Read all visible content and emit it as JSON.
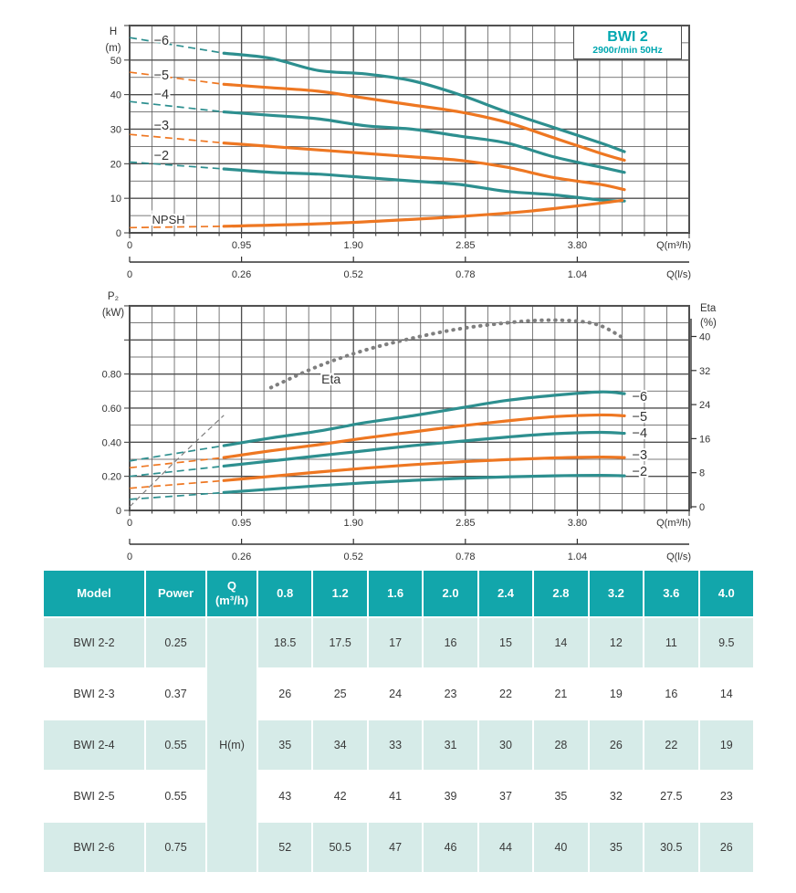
{
  "title": {
    "model": "BWI 2",
    "speed": "2900r/min 50Hz"
  },
  "colors": {
    "teal": "#2d8f8f",
    "orange": "#ee7722",
    "gray": "#7f7f7f",
    "grid": "#4f4f4f",
    "accent": "#00a7b0",
    "table_header_bg": "#12a6ab",
    "table_row_alt_bg": "#d6ebe8",
    "text_dark": "#3a3a3a"
  },
  "chart_data": [
    {
      "type": "line",
      "title": "Head vs flow curves",
      "xlabel": "Q(m³/h)",
      "xlabel2": "Q(l/s)",
      "ylabel": "H\n(m)",
      "xlim": [
        0,
        4.75
      ],
      "ylim": [
        0,
        60
      ],
      "grid": true,
      "x_ticks": [
        "0",
        "0.95",
        "1.90",
        "2.85",
        "3.80"
      ],
      "x2_ticks": [
        "0",
        "0.26",
        "0.52",
        "0.78",
        "1.04"
      ],
      "y_ticks": [
        "0",
        "10",
        "20",
        "30",
        "40",
        "50"
      ],
      "dashed_until": 0.8,
      "x": [
        0,
        0.8,
        1.2,
        1.6,
        2.0,
        2.4,
        2.8,
        3.2,
        3.6,
        4.0,
        4.2
      ],
      "series": [
        {
          "name": "−6",
          "color": "teal",
          "values": [
            56.5,
            52,
            50.5,
            47,
            46,
            44,
            40,
            35,
            30.5,
            26,
            23.5
          ],
          "label": {
            "q": 0.27,
            "v": 55.8
          }
        },
        {
          "name": "−5",
          "color": "orange",
          "values": [
            46.5,
            43,
            42,
            41,
            39,
            37,
            35,
            32,
            27.5,
            23,
            21
          ],
          "label": {
            "q": 0.27,
            "v": 45.7
          }
        },
        {
          "name": "−4",
          "color": "teal",
          "values": [
            38,
            35,
            34,
            33,
            31,
            30,
            28,
            26,
            22,
            19,
            17.5
          ],
          "label": {
            "q": 0.27,
            "v": 40.2
          }
        },
        {
          "name": "−3",
          "color": "orange",
          "values": [
            28.5,
            26,
            25,
            24,
            23,
            22,
            21,
            19,
            16,
            14,
            12.5
          ],
          "label": {
            "q": 0.27,
            "v": 31.2
          }
        },
        {
          "name": "−2",
          "color": "teal",
          "values": [
            20.5,
            18.5,
            17.5,
            17,
            16,
            15,
            14,
            12,
            11,
            9.5,
            9.2
          ],
          "label": {
            "q": 0.27,
            "v": 22.5
          }
        },
        {
          "name": "NPSH",
          "color": "orange",
          "kind": "npsh",
          "x": [
            0,
            0.8,
            1.6,
            2.4,
            3.0,
            3.4,
            3.8,
            4.05,
            4.18
          ],
          "values": [
            1.5,
            1.9,
            2.6,
            3.9,
            5.2,
            6.3,
            7.8,
            8.8,
            9.4
          ],
          "label": {
            "q": 0.19,
            "v": 4.0,
            "anchor": "start"
          }
        }
      ]
    },
    {
      "type": "line",
      "title": "Power and efficiency vs flow curves",
      "xlabel": "Q(m³/h)",
      "xlabel2": "Q(l/s)",
      "ylabel": "P₂\n(kW)",
      "y2label": "Eta\n(%)",
      "xlim": [
        0,
        4.75
      ],
      "ylim": [
        0,
        1.2
      ],
      "y2lim": [
        0,
        48
      ],
      "grid": true,
      "x_ticks": [
        "0",
        "0.95",
        "1.90",
        "2.85",
        "3.80"
      ],
      "x2_ticks": [
        "0",
        "0.26",
        "0.52",
        "0.78",
        "1.04"
      ],
      "y_ticks": [
        "0",
        "0.20",
        "0.40",
        "0.60",
        "0.80"
      ],
      "y2_ticks": [
        "0",
        "8",
        "16",
        "24",
        "32",
        "40"
      ],
      "dashed_until": 0.8,
      "x": [
        0,
        0.8,
        1.2,
        1.6,
        2.0,
        2.4,
        2.8,
        3.2,
        3.6,
        4.0,
        4.2
      ],
      "series": [
        {
          "name": "−6",
          "color": "teal",
          "values": [
            0.29,
            0.38,
            0.425,
            0.465,
            0.515,
            0.555,
            0.6,
            0.645,
            0.675,
            0.695,
            0.685
          ],
          "label": {
            "q": 4.33,
            "v": 0.669
          }
        },
        {
          "name": "−5",
          "color": "orange",
          "values": [
            0.25,
            0.31,
            0.35,
            0.385,
            0.425,
            0.46,
            0.495,
            0.525,
            0.55,
            0.56,
            0.555
          ],
          "label": {
            "q": 4.33,
            "v": 0.552
          }
        },
        {
          "name": "−4",
          "color": "teal",
          "values": [
            0.2,
            0.26,
            0.29,
            0.32,
            0.35,
            0.38,
            0.405,
            0.43,
            0.45,
            0.458,
            0.452
          ],
          "label": {
            "q": 4.33,
            "v": 0.455
          }
        },
        {
          "name": "−3",
          "color": "orange",
          "values": [
            0.13,
            0.175,
            0.2,
            0.225,
            0.248,
            0.268,
            0.285,
            0.298,
            0.308,
            0.313,
            0.31
          ],
          "label": {
            "q": 4.33,
            "v": 0.327
          }
        },
        {
          "name": "−2",
          "color": "teal",
          "values": [
            0.065,
            0.105,
            0.125,
            0.145,
            0.162,
            0.176,
            0.188,
            0.197,
            0.203,
            0.206,
            0.203
          ],
          "label": {
            "q": 4.33,
            "v": 0.23
          }
        },
        {
          "name": "Eta",
          "color": "gray",
          "kind": "eta",
          "scale": "eta",
          "style": "dots",
          "dashed_until": 1.0,
          "x": [
            0,
            0.4,
            0.8,
            1.2,
            1.6,
            2.0,
            2.4,
            2.8,
            3.2,
            3.5,
            3.8,
            4.0,
            4.2
          ],
          "values": [
            0,
            11,
            21.5,
            28,
            33,
            36.8,
            39.6,
            41.8,
            43.2,
            43.8,
            43.6,
            42.5,
            39.5
          ],
          "label": {
            "q": 1.71,
            "v": 0.771,
            "plane": "kw"
          }
        }
      ]
    }
  ],
  "table": {
    "columns": [
      "Model",
      "Power",
      "Q\n(m³/h)",
      "0.8",
      "1.2",
      "1.6",
      "2.0",
      "2.4",
      "2.8",
      "3.2",
      "3.6",
      "4.0"
    ],
    "merged_q_label": "H(m)",
    "rows": [
      {
        "model": "BWI 2-2",
        "power": "0.25",
        "values": [
          "18.5",
          "17.5",
          "17",
          "16",
          "15",
          "14",
          "12",
          "11",
          "9.5"
        ]
      },
      {
        "model": "BWI 2-3",
        "power": "0.37",
        "values": [
          "26",
          "25",
          "24",
          "23",
          "22",
          "21",
          "19",
          "16",
          "14"
        ]
      },
      {
        "model": "BWI 2-4",
        "power": "0.55",
        "values": [
          "35",
          "34",
          "33",
          "31",
          "30",
          "28",
          "26",
          "22",
          "19"
        ]
      },
      {
        "model": "BWI 2-5",
        "power": "0.55",
        "values": [
          "43",
          "42",
          "41",
          "39",
          "37",
          "35",
          "32",
          "27.5",
          "23"
        ]
      },
      {
        "model": "BWI 2-6",
        "power": "0.75",
        "values": [
          "52",
          "50.5",
          "47",
          "46",
          "44",
          "40",
          "35",
          "30.5",
          "26"
        ]
      }
    ]
  }
}
